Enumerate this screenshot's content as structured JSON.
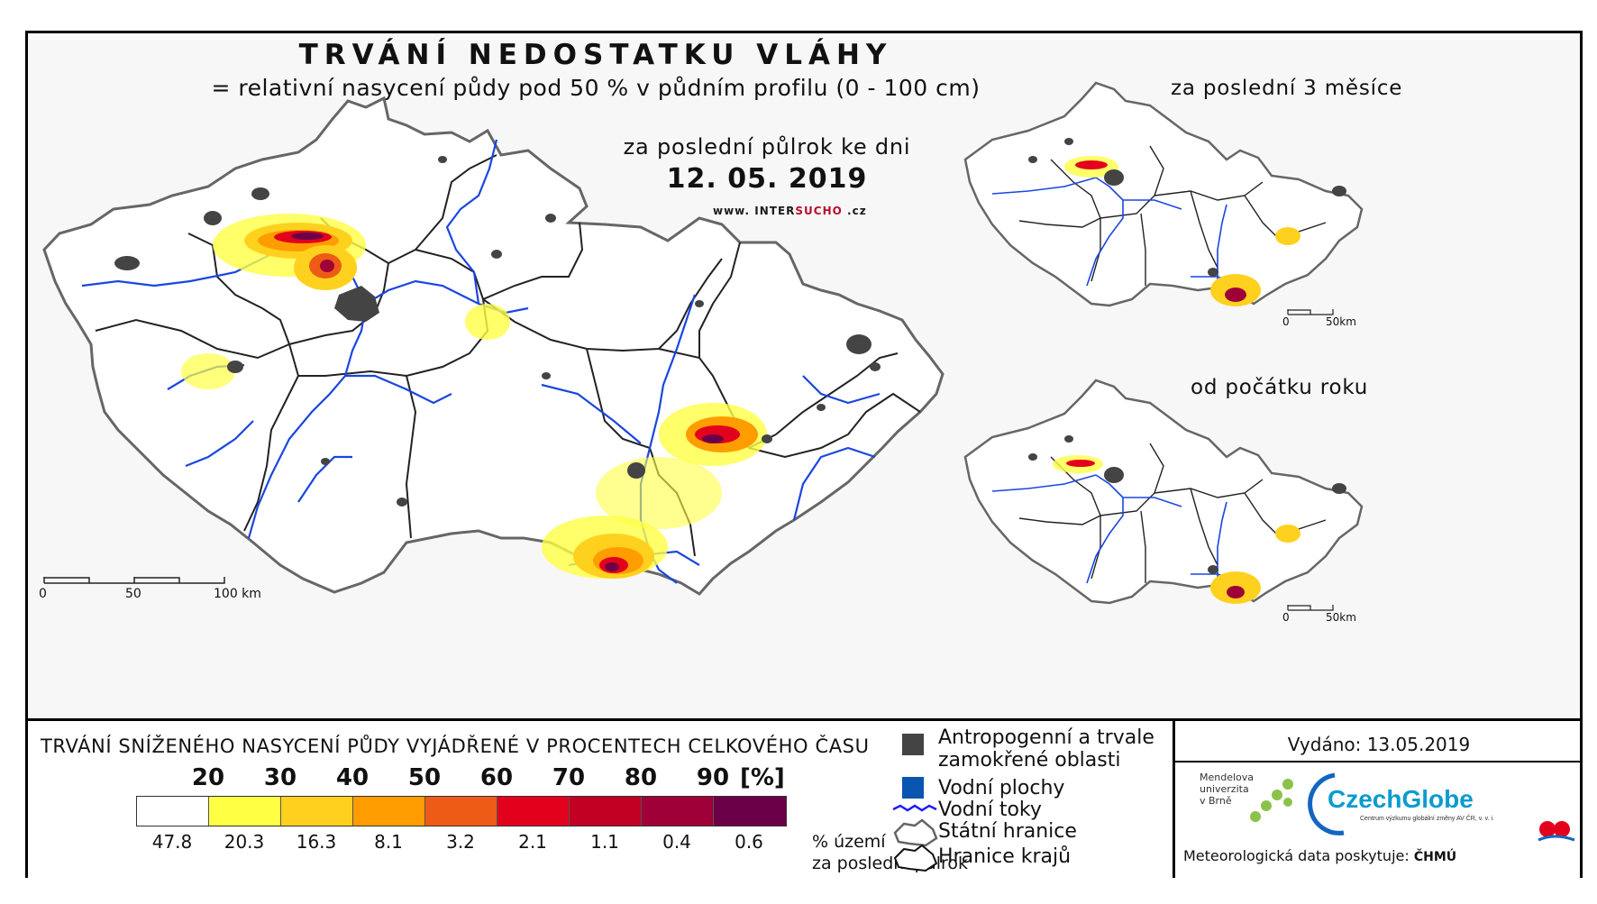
{
  "header": {
    "title": "TRVÁNÍ NEDOSTATKU VLÁHY",
    "subtitle": "= relativní nasycení půdy pod 50 % v půdním profilu (0 - 100 cm)",
    "period": "za poslední půlrok ke dni",
    "date": "12. 05. 2019",
    "website_prefix": "www.",
    "website_inter": "INTER",
    "website_sucho": "SUCHO",
    "website_suffix": ".cz"
  },
  "main_map": {
    "scale_labels": [
      "0",
      "50",
      "100 km"
    ]
  },
  "insets": [
    {
      "title": "za poslední 3 měsíce",
      "scale_labels": [
        "0",
        "50km"
      ]
    },
    {
      "title": "od počátku roku",
      "scale_labels": [
        "0",
        "50km"
      ]
    }
  ],
  "legend": {
    "title": "TRVÁNÍ SNÍŽENÉHO NASYCENÍ PŮDY VYJÁDŘENÉ V PROCENTECH CELKOVÉHO ČASU",
    "class_breaks": [
      "20",
      "30",
      "40",
      "50",
      "60",
      "70",
      "80",
      "90"
    ],
    "unit": "[%]",
    "swatch_colors": [
      "#ffffff",
      "#ffff44",
      "#ffd11f",
      "#ff9d00",
      "#ed5b17",
      "#e3001c",
      "#c10024",
      "#a00038",
      "#6b0049"
    ],
    "area_percentages": [
      "47.8",
      "20.3",
      "16.3",
      "8.1",
      "3.2",
      "2.1",
      "1.1",
      "0.4",
      "0.6"
    ],
    "area_note_line1": "% území",
    "area_note_line2": "za poslední půlrok"
  },
  "map_key": {
    "anthropogenic": "Antropogenní a trvale",
    "anthropogenic_2": "zamokřené oblasti",
    "water_bodies": "Vodní plochy",
    "rivers": "Vodní toky",
    "state_border": "Státní hranice",
    "region_border": "Hranice krajů",
    "colors": {
      "anthropogenic": "#444444",
      "water": "#0a55b0",
      "river": "#1a1aff"
    }
  },
  "credits": {
    "issued": "Vydáno: 13.05.2019",
    "mendel_1": "Mendelova",
    "mendel_2": "univerzita",
    "mendel_3": "v Brně",
    "czechglobe": "CzechGlobe",
    "czechglobe_sub": "Centrum výzkumu globální změny AV ČR, v. v. i.",
    "meteo": "Meteorologická data poskytuje:",
    "chmu": "ČHMÚ"
  }
}
